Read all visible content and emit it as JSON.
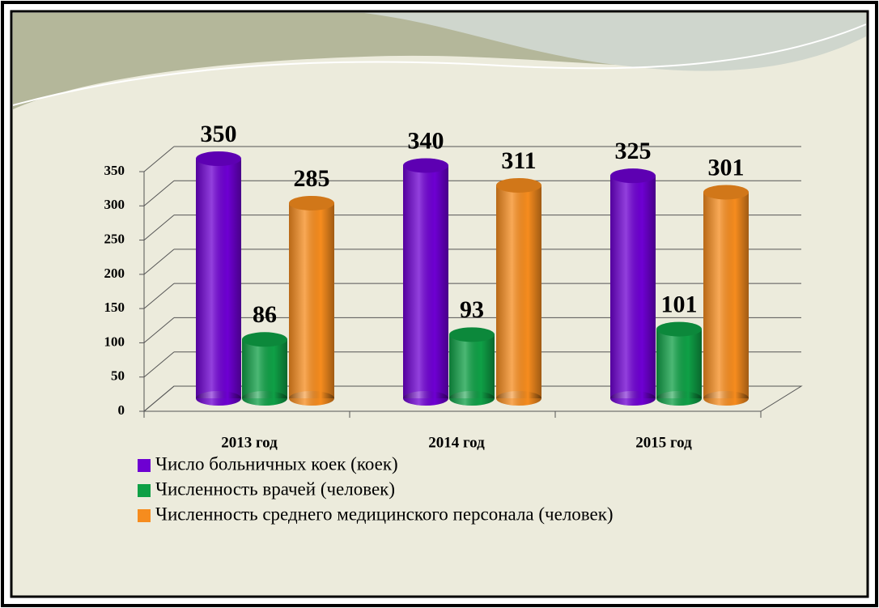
{
  "chart_data": {
    "type": "bar3d",
    "categories": [
      "2013 год",
      "2014 год",
      "2015 год"
    ],
    "series": [
      {
        "name": "Число больничных коек (коек)",
        "color": "#6e00d2",
        "values": [
          350,
          340,
          325
        ]
      },
      {
        "name": "Численность врачей (человек)",
        "color": "#0fa046",
        "values": [
          86,
          93,
          101
        ]
      },
      {
        "name": "Численность среднего медицинского персонала (человек)",
        "color": "#f68c1e",
        "values": [
          285,
          311,
          301
        ]
      }
    ],
    "ylim": [
      0,
      350
    ],
    "yticks": [
      0,
      50,
      100,
      150,
      200,
      250,
      300,
      350
    ],
    "grid": true
  }
}
